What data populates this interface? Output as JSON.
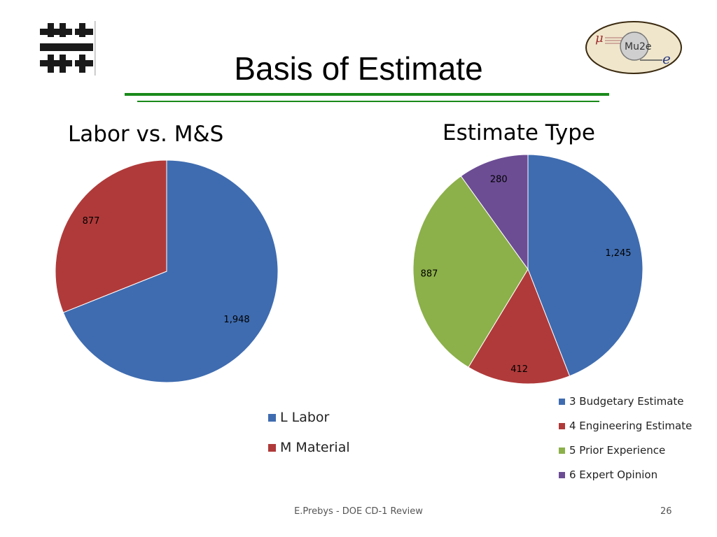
{
  "slide": {
    "title": "Basis of Estimate",
    "footer": "E.Prebys - DOE CD-1 Review",
    "page_number": "26",
    "accent_color": "#1a8a1a"
  },
  "logos": {
    "left": {
      "icon": "fermilab-logo-icon"
    },
    "right": {
      "icon": "mu2e-logo-icon",
      "text": "Mu2e",
      "mu_symbol": "μ",
      "e_symbol": "e"
    }
  },
  "chart_data": [
    {
      "type": "pie",
      "title": "Labor vs. M&S",
      "categories": [
        "L Labor",
        "M Material"
      ],
      "values": [
        1948,
        877
      ],
      "value_labels": [
        "1,948",
        "877"
      ],
      "colors": [
        "#3f6cb0",
        "#b03a3a"
      ],
      "legend": [
        "L Labor",
        "M Material"
      ],
      "legend_position": "bottom"
    },
    {
      "type": "pie",
      "title": "Estimate Type",
      "categories": [
        "3 Budgetary Estimate",
        "4 Engineering Estimate",
        "5 Prior Experience",
        "6 Expert Opinion"
      ],
      "values": [
        1245,
        412,
        887,
        280
      ],
      "value_labels": [
        "1,245",
        "412",
        "887",
        "280"
      ],
      "colors": [
        "#3f6cb0",
        "#b03a3a",
        "#8cb04a",
        "#6c4d94"
      ],
      "legend": [
        "3 Budgetary Estimate",
        "4 Engineering Estimate",
        "5 Prior Experience",
        "6 Expert Opinion"
      ],
      "legend_position": "bottom-right"
    }
  ]
}
